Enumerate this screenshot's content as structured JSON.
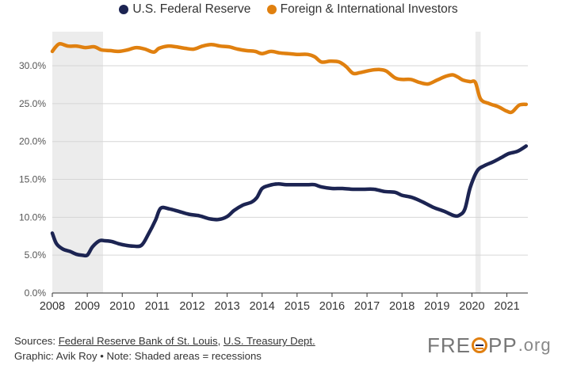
{
  "chart_data": {
    "type": "line",
    "title": "",
    "xlabel": "",
    "ylabel": "",
    "x_ticks": [
      "2008",
      "2009",
      "2010",
      "2011",
      "2012",
      "2013",
      "2014",
      "2015",
      "2016",
      "2017",
      "2018",
      "2019",
      "2020",
      "2021"
    ],
    "y_ticks": [
      "0.0%",
      "5.0%",
      "10.0%",
      "15.0%",
      "20.0%",
      "25.0%",
      "30.0%"
    ],
    "xlim": [
      2008.0,
      2021.6
    ],
    "ylim": [
      0,
      34.5
    ],
    "grid": true,
    "recessions": [
      [
        2008.0,
        2009.45
      ],
      [
        2020.1,
        2020.25
      ]
    ],
    "series": [
      {
        "name": "U.S. Federal Reserve",
        "color": "#1c2452",
        "points": [
          [
            2008.0,
            7.9
          ],
          [
            2008.12,
            6.5
          ],
          [
            2008.3,
            5.8
          ],
          [
            2008.5,
            5.5
          ],
          [
            2008.7,
            5.1
          ],
          [
            2008.85,
            5.0
          ],
          [
            2009.0,
            5.0
          ],
          [
            2009.15,
            6.1
          ],
          [
            2009.35,
            6.9
          ],
          [
            2009.5,
            6.9
          ],
          [
            2009.7,
            6.8
          ],
          [
            2009.9,
            6.5
          ],
          [
            2010.1,
            6.3
          ],
          [
            2010.3,
            6.2
          ],
          [
            2010.55,
            6.3
          ],
          [
            2010.75,
            7.8
          ],
          [
            2010.95,
            9.6
          ],
          [
            2011.1,
            11.2
          ],
          [
            2011.35,
            11.1
          ],
          [
            2011.6,
            10.8
          ],
          [
            2011.9,
            10.4
          ],
          [
            2012.2,
            10.2
          ],
          [
            2012.5,
            9.8
          ],
          [
            2012.75,
            9.7
          ],
          [
            2013.0,
            10.1
          ],
          [
            2013.2,
            10.9
          ],
          [
            2013.45,
            11.6
          ],
          [
            2013.7,
            12.0
          ],
          [
            2013.85,
            12.6
          ],
          [
            2014.0,
            13.8
          ],
          [
            2014.2,
            14.2
          ],
          [
            2014.45,
            14.4
          ],
          [
            2014.7,
            14.3
          ],
          [
            2015.0,
            14.3
          ],
          [
            2015.3,
            14.3
          ],
          [
            2015.5,
            14.3
          ],
          [
            2015.7,
            14.0
          ],
          [
            2016.0,
            13.8
          ],
          [
            2016.3,
            13.8
          ],
          [
            2016.6,
            13.7
          ],
          [
            2016.9,
            13.7
          ],
          [
            2017.2,
            13.7
          ],
          [
            2017.5,
            13.4
          ],
          [
            2017.8,
            13.3
          ],
          [
            2018.0,
            12.9
          ],
          [
            2018.3,
            12.6
          ],
          [
            2018.6,
            12.0
          ],
          [
            2018.9,
            11.3
          ],
          [
            2019.2,
            10.8
          ],
          [
            2019.5,
            10.2
          ],
          [
            2019.65,
            10.3
          ],
          [
            2019.8,
            11.1
          ],
          [
            2019.95,
            13.9
          ],
          [
            2020.15,
            16.1
          ],
          [
            2020.35,
            16.8
          ],
          [
            2020.6,
            17.3
          ],
          [
            2020.85,
            17.9
          ],
          [
            2021.05,
            18.4
          ],
          [
            2021.3,
            18.7
          ],
          [
            2021.55,
            19.4
          ]
        ]
      },
      {
        "name": "Foreign & International Investors",
        "color": "#e0800f",
        "points": [
          [
            2008.0,
            31.9
          ],
          [
            2008.1,
            32.5
          ],
          [
            2008.22,
            32.9
          ],
          [
            2008.45,
            32.6
          ],
          [
            2008.7,
            32.6
          ],
          [
            2008.95,
            32.4
          ],
          [
            2009.2,
            32.5
          ],
          [
            2009.4,
            32.1
          ],
          [
            2009.65,
            32.0
          ],
          [
            2009.9,
            31.9
          ],
          [
            2010.15,
            32.1
          ],
          [
            2010.4,
            32.4
          ],
          [
            2010.65,
            32.2
          ],
          [
            2010.9,
            31.8
          ],
          [
            2011.05,
            32.3
          ],
          [
            2011.3,
            32.6
          ],
          [
            2011.55,
            32.5
          ],
          [
            2011.8,
            32.3
          ],
          [
            2012.05,
            32.2
          ],
          [
            2012.3,
            32.6
          ],
          [
            2012.55,
            32.8
          ],
          [
            2012.8,
            32.6
          ],
          [
            2013.05,
            32.5
          ],
          [
            2013.3,
            32.2
          ],
          [
            2013.55,
            32.0
          ],
          [
            2013.8,
            31.9
          ],
          [
            2014.0,
            31.6
          ],
          [
            2014.25,
            31.9
          ],
          [
            2014.5,
            31.7
          ],
          [
            2014.75,
            31.6
          ],
          [
            2015.0,
            31.5
          ],
          [
            2015.3,
            31.5
          ],
          [
            2015.5,
            31.2
          ],
          [
            2015.7,
            30.5
          ],
          [
            2015.95,
            30.6
          ],
          [
            2016.2,
            30.5
          ],
          [
            2016.4,
            29.9
          ],
          [
            2016.6,
            29.0
          ],
          [
            2016.8,
            29.1
          ],
          [
            2017.1,
            29.4
          ],
          [
            2017.35,
            29.5
          ],
          [
            2017.55,
            29.3
          ],
          [
            2017.8,
            28.4
          ],
          [
            2018.0,
            28.2
          ],
          [
            2018.25,
            28.2
          ],
          [
            2018.5,
            27.8
          ],
          [
            2018.75,
            27.6
          ],
          [
            2019.0,
            28.1
          ],
          [
            2019.25,
            28.6
          ],
          [
            2019.45,
            28.8
          ],
          [
            2019.6,
            28.5
          ],
          [
            2019.75,
            28.1
          ],
          [
            2019.95,
            27.9
          ],
          [
            2020.1,
            27.8
          ],
          [
            2020.25,
            25.6
          ],
          [
            2020.5,
            25.0
          ],
          [
            2020.75,
            24.6
          ],
          [
            2021.0,
            24.0
          ],
          [
            2021.15,
            23.9
          ],
          [
            2021.35,
            24.8
          ],
          [
            2021.55,
            24.9
          ]
        ]
      }
    ]
  },
  "legend": [
    {
      "label": "U.S. Federal Reserve",
      "color": "#1c2452"
    },
    {
      "label": "Foreign & International Investors",
      "color": "#e0800f"
    }
  ],
  "footer": {
    "sources_prefix": "Sources: ",
    "source_1": "Federal Reserve Bank of St. Louis",
    "separator": ", ",
    "source_2": "U.S. Treasury Dept.",
    "graphic_line": "Graphic: Avik Roy • Note: Shaded areas = recessions"
  },
  "logo": {
    "text_1": "FRE",
    "text_2": "PP",
    "text_3": ".org"
  }
}
